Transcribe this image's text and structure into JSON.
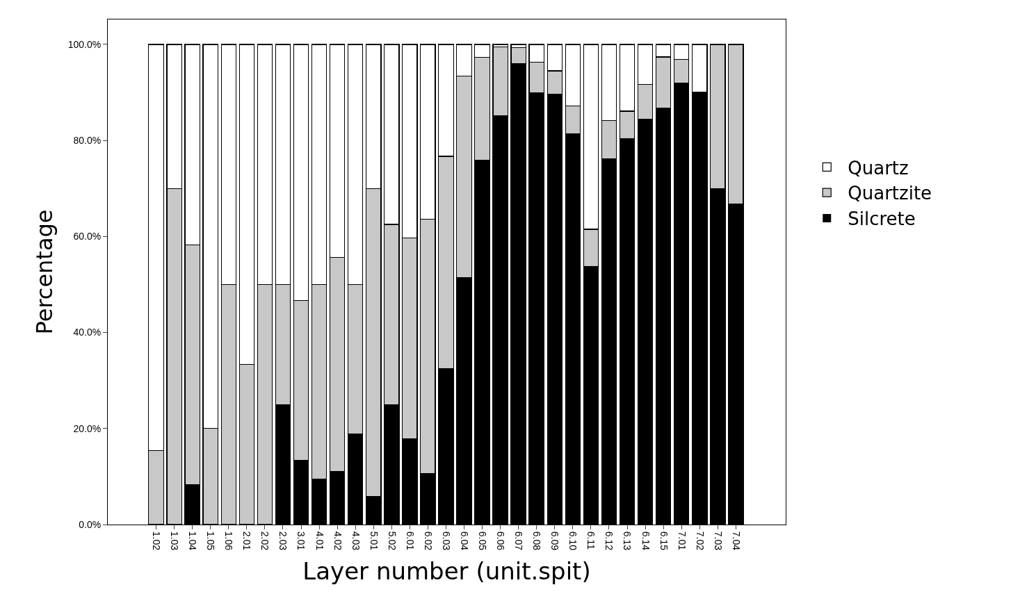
{
  "chart_data": {
    "type": "bar",
    "stacked": true,
    "xlabel": "Layer number (unit.spit)",
    "ylabel": "Percentage",
    "categories": [
      "1.02",
      "1.03",
      "1.04",
      "1.05",
      "1.06",
      "2.01",
      "2.02",
      "2.03",
      "3.01",
      "4.01",
      "4.02",
      "4.03",
      "5.01",
      "5.02",
      "6.01",
      "6.02",
      "6.03",
      "6.04",
      "6.05",
      "6.06",
      "6.07",
      "6.08",
      "6.09",
      "6.10",
      "6.11",
      "6.12",
      "6.13",
      "6.14",
      "6.15",
      "7.01",
      "7.02",
      "7.03",
      "7.04"
    ],
    "series": [
      {
        "name": "Silcrete",
        "color": "#000000",
        "values": [
          0,
          0,
          8.3,
          0,
          0,
          0,
          0,
          25,
          13.3,
          9.5,
          11.1,
          18.8,
          5.9,
          25,
          17.9,
          10.6,
          32.5,
          51.4,
          75.9,
          85.2,
          96,
          89.9,
          89.6,
          81.4,
          53.8,
          76.2,
          80.3,
          84.4,
          86.8,
          92,
          90,
          70,
          66.7
        ]
      },
      {
        "name": "Quartzite",
        "color": "#c8c8c8",
        "values": [
          15.4,
          70,
          50,
          20,
          50,
          33.3,
          50,
          25,
          33.4,
          40.5,
          44.5,
          31.2,
          64.1,
          37.5,
          41.8,
          53,
          44.2,
          42,
          21.4,
          14.3,
          3.3,
          6.4,
          4.9,
          5.8,
          7.7,
          7.9,
          5.8,
          7.3,
          10.6,
          4.9,
          0,
          30,
          33.3
        ]
      },
      {
        "name": "Quartz",
        "color": "#ffffff",
        "values": [
          84.6,
          30,
          41.7,
          80,
          50,
          66.7,
          50,
          50,
          53.3,
          50,
          44.4,
          50,
          30,
          37.5,
          40.3,
          36.4,
          23.3,
          6.6,
          2.7,
          0.5,
          0.7,
          3.7,
          5.5,
          12.8,
          38.5,
          15.9,
          13.9,
          8.3,
          2.6,
          3.1,
          10,
          0,
          0
        ]
      }
    ],
    "ylim": [
      0,
      105.2
    ],
    "yticks": [
      {
        "value": 0,
        "label": "0.0%"
      },
      {
        "value": 20,
        "label": "20.0%"
      },
      {
        "value": 40,
        "label": "40.0%"
      },
      {
        "value": 60,
        "label": "60.0%"
      },
      {
        "value": 80,
        "label": "80.0%"
      },
      {
        "value": 100,
        "label": "100.0%"
      }
    ],
    "grid": false,
    "legend": "right"
  }
}
